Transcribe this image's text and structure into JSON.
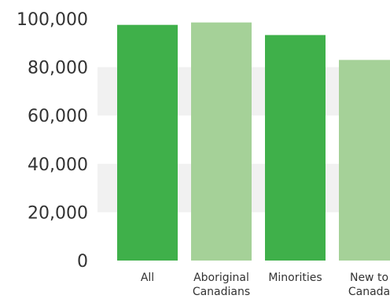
{
  "chart_data": {
    "type": "bar",
    "title": "",
    "xlabel": "",
    "ylabel": "",
    "categories": [
      "All",
      "Aboriginal Canadians",
      "Minorities",
      "New to Canada"
    ],
    "category_lines": [
      [
        "All"
      ],
      [
        "Aboriginal",
        "Canadians"
      ],
      [
        "Minorities"
      ],
      [
        "New to",
        "Canada"
      ]
    ],
    "values": [
      97500,
      98500,
      93300,
      83000
    ],
    "ylim": [
      0,
      100000
    ],
    "yticks": [
      0,
      20000,
      40000,
      60000,
      80000,
      100000
    ],
    "ytick_labels": [
      "0",
      "20,000",
      "40,000",
      "60,000",
      "80,000",
      "100,000"
    ],
    "grid": "alternating horizontal bands",
    "legend": "none",
    "colors": {
      "bar_dark": "#3fb04a",
      "bar_light": "#a5d198",
      "band": "#f1f1f1",
      "text": "#333333"
    }
  }
}
